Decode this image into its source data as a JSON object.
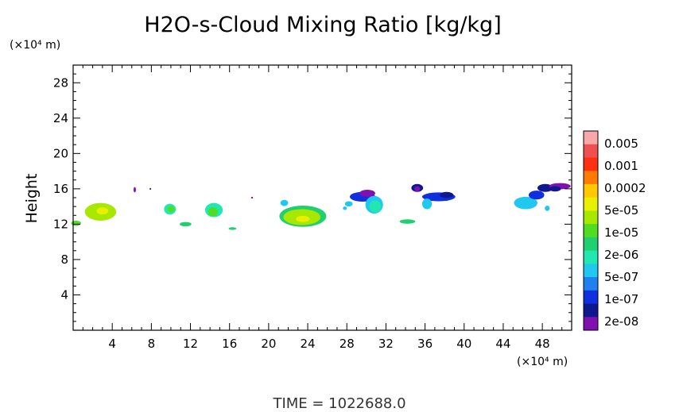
{
  "chart_data": {
    "type": "heatmap",
    "title": "H2O-s-Cloud Mixing Ratio [kg/kg]",
    "ylabel": "Height",
    "x_unit": "(×10⁴ m)",
    "y_unit": "(×10⁴ m)",
    "footer": "TIME = 1022688.0",
    "xlim": [
      0,
      51
    ],
    "ylim": [
      0,
      30
    ],
    "x_ticks": [
      4,
      8,
      12,
      16,
      20,
      24,
      28,
      32,
      36,
      40,
      44,
      48
    ],
    "y_ticks": [
      4,
      8,
      12,
      16,
      20,
      24,
      28
    ],
    "colorbar": {
      "labels": [
        "0.005",
        "0.001",
        "0.0002",
        "5e-05",
        "1e-05",
        "2e-06",
        "5e-07",
        "1e-07",
        "2e-08"
      ],
      "colors": [
        "#f7a8a8",
        "#f05050",
        "#ff3010",
        "#ff7a00",
        "#ffc800",
        "#e8f000",
        "#a8e800",
        "#50dc20",
        "#20d070",
        "#20e8b0",
        "#20c8f0",
        "#2080f0",
        "#1030e0",
        "#101890",
        "#8010b0"
      ]
    },
    "blobs": [
      {
        "x": 0.3,
        "y": 12.1,
        "rx": 0.5,
        "ry": 0.3,
        "c": 7
      },
      {
        "x": 2.8,
        "y": 13.4,
        "rx": 1.6,
        "ry": 1.0,
        "c": 6
      },
      {
        "x": 3.0,
        "y": 13.5,
        "rx": 0.6,
        "ry": 0.4,
        "c": 5
      },
      {
        "x": 6.3,
        "y": 15.9,
        "rx": 0.12,
        "ry": 0.3,
        "c": 14
      },
      {
        "x": 7.9,
        "y": 16.0,
        "rx": 0.08,
        "ry": 0.1,
        "c": 13
      },
      {
        "x": 9.9,
        "y": 13.7,
        "rx": 0.6,
        "ry": 0.6,
        "c": 9
      },
      {
        "x": 10.0,
        "y": 13.7,
        "rx": 0.35,
        "ry": 0.35,
        "c": 7
      },
      {
        "x": 11.5,
        "y": 12.0,
        "rx": 0.6,
        "ry": 0.25,
        "c": 8
      },
      {
        "x": 14.4,
        "y": 13.6,
        "rx": 0.9,
        "ry": 0.8,
        "c": 9
      },
      {
        "x": 14.3,
        "y": 13.4,
        "rx": 0.5,
        "ry": 0.5,
        "c": 7
      },
      {
        "x": 16.3,
        "y": 11.5,
        "rx": 0.4,
        "ry": 0.15,
        "c": 8
      },
      {
        "x": 18.3,
        "y": 15.0,
        "rx": 0.1,
        "ry": 0.1,
        "c": 14
      },
      {
        "x": 21.6,
        "y": 14.4,
        "rx": 0.4,
        "ry": 0.35,
        "c": 10
      },
      {
        "x": 23.5,
        "y": 12.9,
        "rx": 2.4,
        "ry": 1.2,
        "c": 8
      },
      {
        "x": 23.4,
        "y": 12.8,
        "rx": 1.9,
        "ry": 0.9,
        "c": 6
      },
      {
        "x": 23.5,
        "y": 12.6,
        "rx": 0.7,
        "ry": 0.35,
        "c": 5
      },
      {
        "x": 28.2,
        "y": 14.3,
        "rx": 0.4,
        "ry": 0.3,
        "c": 10
      },
      {
        "x": 27.8,
        "y": 13.8,
        "rx": 0.2,
        "ry": 0.2,
        "c": 10
      },
      {
        "x": 29.6,
        "y": 15.1,
        "rx": 1.3,
        "ry": 0.55,
        "c": 12
      },
      {
        "x": 30.1,
        "y": 15.5,
        "rx": 0.8,
        "ry": 0.4,
        "c": 14
      },
      {
        "x": 30.8,
        "y": 14.2,
        "rx": 0.9,
        "ry": 1.0,
        "c": 10
      },
      {
        "x": 30.9,
        "y": 14.0,
        "rx": 0.6,
        "ry": 0.7,
        "c": 9
      },
      {
        "x": 35.2,
        "y": 16.1,
        "rx": 0.6,
        "ry": 0.45,
        "c": 13
      },
      {
        "x": 35.2,
        "y": 16.0,
        "rx": 0.3,
        "ry": 0.3,
        "c": 14
      },
      {
        "x": 34.2,
        "y": 12.3,
        "rx": 0.8,
        "ry": 0.25,
        "c": 8
      },
      {
        "x": 37.4,
        "y": 15.1,
        "rx": 1.7,
        "ry": 0.5,
        "c": 12
      },
      {
        "x": 36.2,
        "y": 14.3,
        "rx": 0.5,
        "ry": 0.6,
        "c": 10
      },
      {
        "x": 38.2,
        "y": 15.3,
        "rx": 0.7,
        "ry": 0.35,
        "c": 13
      },
      {
        "x": 46.3,
        "y": 14.4,
        "rx": 1.2,
        "ry": 0.7,
        "c": 10
      },
      {
        "x": 47.4,
        "y": 15.3,
        "rx": 0.8,
        "ry": 0.5,
        "c": 12
      },
      {
        "x": 48.3,
        "y": 16.1,
        "rx": 0.8,
        "ry": 0.45,
        "c": 13
      },
      {
        "x": 49.8,
        "y": 16.3,
        "rx": 1.1,
        "ry": 0.35,
        "c": 14
      },
      {
        "x": 49.3,
        "y": 16.0,
        "rx": 0.6,
        "ry": 0.3,
        "c": 13
      },
      {
        "x": 48.5,
        "y": 13.8,
        "rx": 0.25,
        "ry": 0.3,
        "c": 10
      }
    ]
  }
}
